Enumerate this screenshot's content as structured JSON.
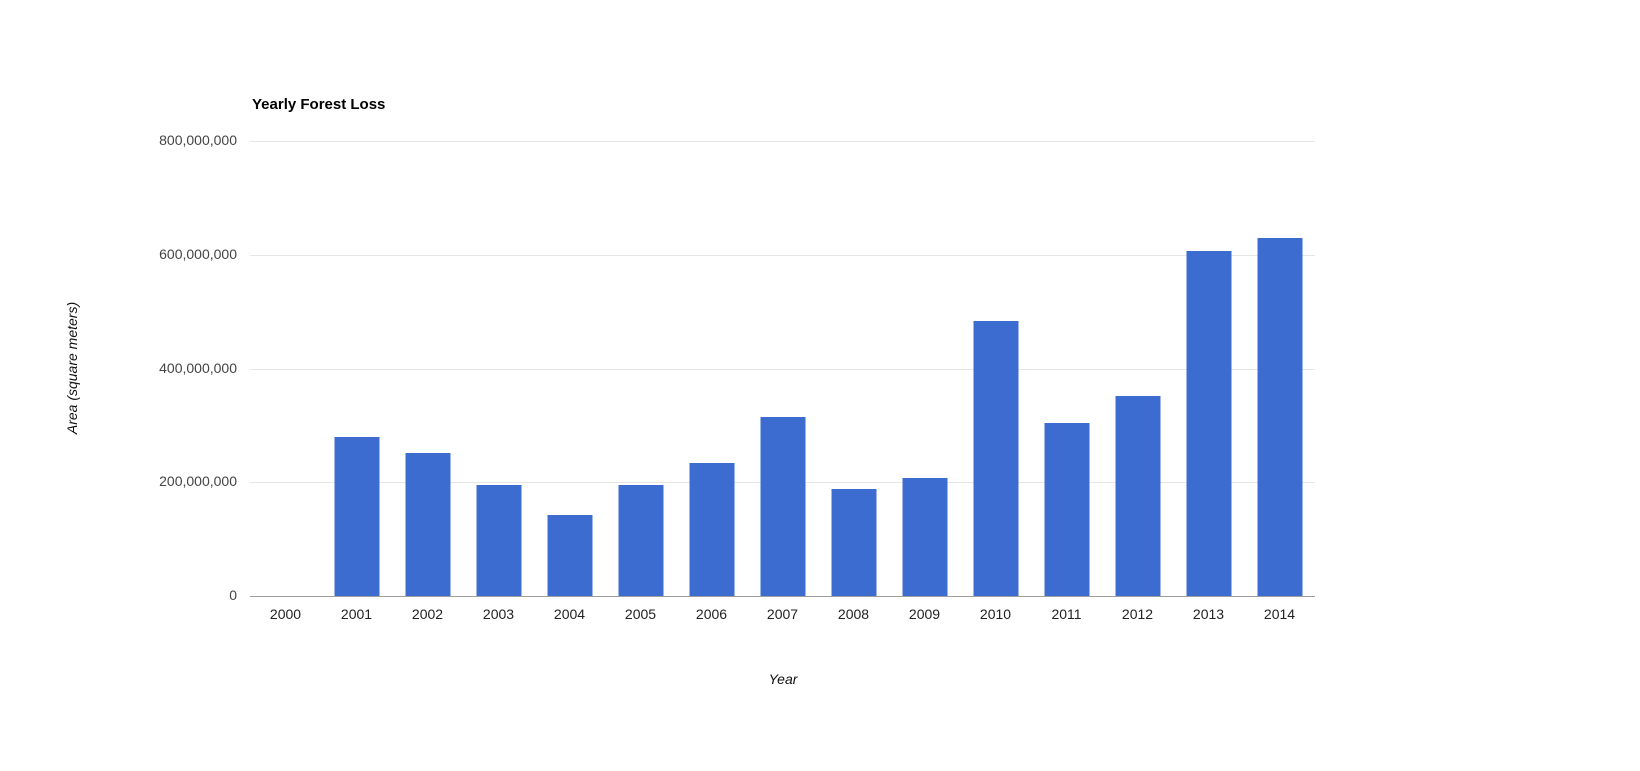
{
  "chart_data": {
    "type": "bar",
    "title": "Yearly Forest Loss",
    "xlabel": "Year",
    "ylabel": "Area (square meters)",
    "categories": [
      "2000",
      "2001",
      "2002",
      "2003",
      "2004",
      "2005",
      "2006",
      "2007",
      "2008",
      "2009",
      "2010",
      "2011",
      "2012",
      "2013",
      "2014"
    ],
    "values": [
      0,
      280000000,
      251000000,
      196000000,
      143000000,
      196000000,
      233000000,
      314000000,
      189000000,
      208000000,
      483000000,
      305000000,
      351000000,
      607000000,
      630000000
    ],
    "ylim": [
      0,
      800000000
    ],
    "yticks": [
      {
        "value": 0,
        "label": "0"
      },
      {
        "value": 200000000,
        "label": "200,000,000"
      },
      {
        "value": 400000000,
        "label": "400,000,000"
      },
      {
        "value": 600000000,
        "label": "600,000,000"
      },
      {
        "value": 800000000,
        "label": "800,000,000"
      }
    ],
    "legend_position": "none",
    "grid": true,
    "colors": {
      "bar": "#3d6cd1",
      "gridline": "#e6e6e6",
      "baseline": "#9e9e9e",
      "title_text": "#000000",
      "tick_text": "#444444",
      "background": "#ffffff"
    }
  }
}
